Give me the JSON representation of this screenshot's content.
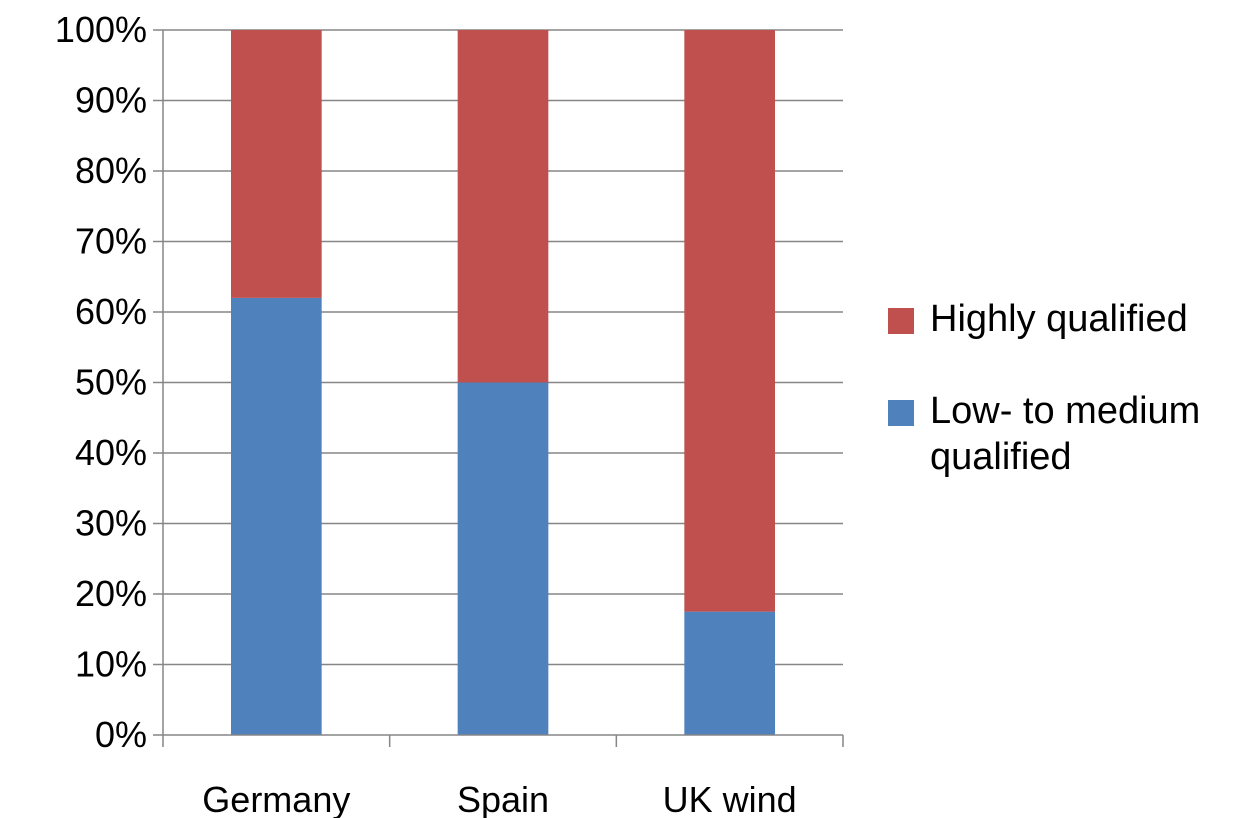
{
  "chart_data": {
    "type": "bar",
    "stacked": true,
    "categories": [
      "Germany",
      "Spain",
      "UK wind"
    ],
    "series": [
      {
        "name": "Low- to medium qualified",
        "values": [
          62,
          50,
          17.5
        ],
        "color": "#4f81bd"
      },
      {
        "name": "Highly qualified",
        "values": [
          38,
          50,
          82.5
        ],
        "color": "#c0504d"
      }
    ],
    "ylim": [
      0,
      100
    ],
    "ytick_step": 10,
    "ytick_suffix": "%",
    "grid": true,
    "legend_position": "right",
    "legend_order": [
      1,
      0
    ],
    "title": "",
    "xlabel": "",
    "ylabel": ""
  }
}
